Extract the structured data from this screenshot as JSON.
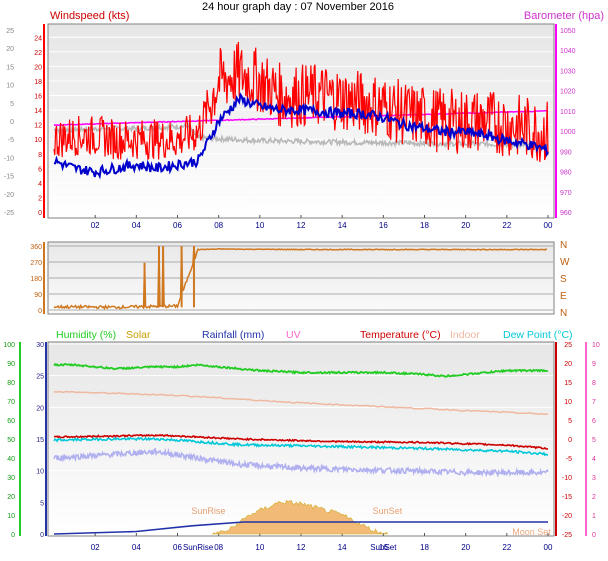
{
  "title": "24 hour graph day : 07 November 2016",
  "colors": {
    "wind": "#ff0000",
    "wind_avg": "#0000cc",
    "wind_gray": "#b8b8b8",
    "barometer": "#ff00ff",
    "direction": "#d07820",
    "humidity": "#22cc22",
    "solar": "#c8a000",
    "rainfall": "#2233aa",
    "uv": "#ff66cc",
    "temperature": "#cc0000",
    "indoor": "#f0b8a0",
    "dew_point": "#00c8d8",
    "lavender": "#b0b0f0",
    "sun_fill": "#f0b060",
    "moon": "#e8a880"
  },
  "chart_data": [
    {
      "type": "line",
      "labels": {
        "left": "Windspeed (kts)",
        "right": "Barometer (hpa)"
      },
      "x_ticks": [
        "02",
        "04",
        "06",
        "08",
        "10",
        "12",
        "14",
        "16",
        "18",
        "20",
        "22",
        "00"
      ],
      "x_range_hours": [
        0,
        24
      ],
      "y_left_ticks": [
        "0",
        "2",
        "4",
        "6",
        "8",
        "10",
        "12",
        "14",
        "16",
        "18",
        "20",
        "22",
        "24"
      ],
      "y_left_ticks_secondary": [
        "-25",
        "-20",
        "-15",
        "-10",
        "-5",
        "0",
        "5",
        "10",
        "15",
        "20",
        "25"
      ],
      "y_right_ticks": [
        "960",
        "970",
        "980",
        "990",
        "1000",
        "1010",
        "1020",
        "1030",
        "1040",
        "1050"
      ],
      "y_left_range": [
        0,
        25
      ],
      "y_right_range": [
        960,
        1050
      ],
      "series": [
        {
          "label": "gust",
          "hours": [
            0,
            1,
            2,
            3,
            4,
            5,
            6,
            7,
            8,
            9,
            10,
            11,
            12,
            13,
            14,
            15,
            16,
            17,
            18,
            19,
            20,
            21,
            22,
            23,
            24
          ],
          "values": [
            10,
            10.5,
            10.5,
            10,
            10,
            10,
            10,
            11,
            18,
            19,
            18,
            16,
            16,
            16,
            15.5,
            15,
            14.5,
            13.5,
            13,
            12.5,
            12.5,
            12.5,
            12,
            11.5,
            11
          ]
        },
        {
          "label": "average",
          "hours": [
            0,
            1,
            2,
            3,
            4,
            5,
            6,
            7,
            8,
            9,
            10,
            11,
            12,
            13,
            14,
            15,
            16,
            17,
            18,
            19,
            20,
            21,
            22,
            23,
            24
          ],
          "values": [
            7,
            6,
            5.5,
            6,
            6.5,
            6,
            6.5,
            7,
            12.5,
            15.5,
            14.5,
            14,
            14,
            13.8,
            13.5,
            13.5,
            13,
            12,
            11.5,
            11,
            11,
            10.5,
            9.8,
            9.3,
            8.5
          ]
        },
        {
          "label": "gray",
          "hours": [
            0,
            4,
            6.5,
            7,
            10,
            16,
            22,
            24
          ],
          "values": [
            11.3,
            11.5,
            11.8,
            10.2,
            9.8,
            9.5,
            9.3,
            9
          ]
        },
        {
          "label": "barometer",
          "hours": [
            0,
            24
          ],
          "values": [
            1003,
            1010
          ]
        }
      ]
    },
    {
      "type": "scatter",
      "direction_labels": [
        "N",
        "W",
        "S",
        "E",
        "N"
      ],
      "y_ticks": [
        "0",
        "90",
        "180",
        "270",
        "360"
      ],
      "y_range": [
        0,
        360
      ],
      "hours": [
        0,
        3,
        6,
        7,
        8,
        12,
        16,
        20,
        24
      ],
      "values": [
        18,
        16,
        22,
        340,
        343,
        340,
        340,
        340,
        340
      ],
      "spikes": [
        {
          "hour": 4.4,
          "value": 265
        },
        {
          "hour": 5.1,
          "value": 360
        },
        {
          "hour": 5.3,
          "value": 360
        },
        {
          "hour": 6.2,
          "value": 360
        },
        {
          "hour": 6.8,
          "value": 360
        }
      ]
    },
    {
      "type": "line",
      "legend": [
        "Humidity  (%)",
        "Solar",
        "Rainfall (mm)",
        "UV",
        "Temperature (°C)",
        "Indoor",
        "Dew Point (°C)"
      ],
      "x_ticks": [
        "02",
        "04",
        "06",
        "08",
        "10",
        "12",
        "14",
        "16",
        "18",
        "20",
        "22",
        "00"
      ],
      "x_range_hours": [
        0,
        24
      ],
      "y_left_outer_ticks": [
        "0",
        "10",
        "20",
        "30",
        "40",
        "50",
        "60",
        "70",
        "80",
        "90",
        "100"
      ],
      "y_left_outer_range": [
        0,
        100
      ],
      "y_left_inner_ticks": [
        "0",
        "5",
        "10",
        "15",
        "20",
        "25",
        "30"
      ],
      "y_left_inner_range": [
        0,
        30
      ],
      "y_right_inner_ticks": [
        "-25",
        "-20",
        "-15",
        "-10",
        "-5",
        "0",
        "5",
        "10",
        "15",
        "20",
        "25"
      ],
      "y_right_inner_range": [
        -25,
        25
      ],
      "y_right_outer_ticks": [
        "0",
        "1",
        "2",
        "3",
        "4",
        "5",
        "6",
        "7",
        "8",
        "9",
        "10"
      ],
      "y_right_outer_range": [
        0,
        10
      ],
      "series": [
        {
          "label": "humidity_%",
          "hours": [
            0,
            1,
            2,
            3,
            5,
            6,
            7,
            8,
            10,
            12,
            14,
            16,
            18,
            19,
            20,
            22,
            24
          ],
          "values": [
            89,
            89,
            88,
            87,
            88,
            88,
            89,
            88,
            86,
            85,
            85,
            85,
            84,
            83,
            84,
            86,
            86
          ]
        },
        {
          "label": "indoor_degC",
          "hours": [
            0,
            6,
            12,
            18,
            24
          ],
          "values": [
            12.5,
            11.5,
            9.5,
            8,
            6.5
          ]
        },
        {
          "label": "temperature_degC",
          "hours": [
            0,
            3,
            5,
            6,
            9,
            14,
            18,
            22,
            24
          ],
          "values": [
            0.5,
            0.8,
            1,
            0.8,
            0,
            -0.7,
            -0.9,
            -1.6,
            -2.5
          ]
        },
        {
          "label": "dew_point_degC",
          "hours": [
            0,
            3,
            5,
            6,
            9,
            14,
            18,
            22,
            24
          ],
          "values": [
            -0.3,
            0,
            0,
            -0.3,
            -1.5,
            -2,
            -2.5,
            -3.2,
            -4
          ]
        },
        {
          "label": "lavender_degC",
          "hours": [
            0,
            3,
            5,
            7,
            9,
            12,
            16,
            20,
            24
          ],
          "values": [
            -5,
            -4,
            -3.3,
            -5,
            -6.7,
            -7.7,
            -8.2,
            -8.8,
            -8.9
          ]
        },
        {
          "label": "rainfall_mm",
          "hours": [
            0,
            4,
            6.7,
            9.2,
            24
          ],
          "values": [
            0,
            0.4,
            1.3,
            1.9,
            1.9
          ]
        },
        {
          "label": "solar",
          "hours": [
            7.7,
            8.5,
            9.5,
            11,
            12,
            14,
            15.5,
            16.2
          ],
          "values": [
            0,
            0.2,
            1,
            1.7,
            1.6,
            1,
            0.2,
            0
          ]
        }
      ],
      "annotations": [
        {
          "text": "SunRise",
          "hour": 7.5,
          "where": "top"
        },
        {
          "text": "SunSet",
          "hour": 16.2,
          "where": "top"
        },
        {
          "text": "SunRise",
          "hour": 7.0,
          "where": "bottom"
        },
        {
          "text": "SunSet",
          "hour": 16.0,
          "where": "bottom"
        },
        {
          "text": "Moon Set",
          "hour": 23.2,
          "where": "top"
        }
      ]
    }
  ]
}
